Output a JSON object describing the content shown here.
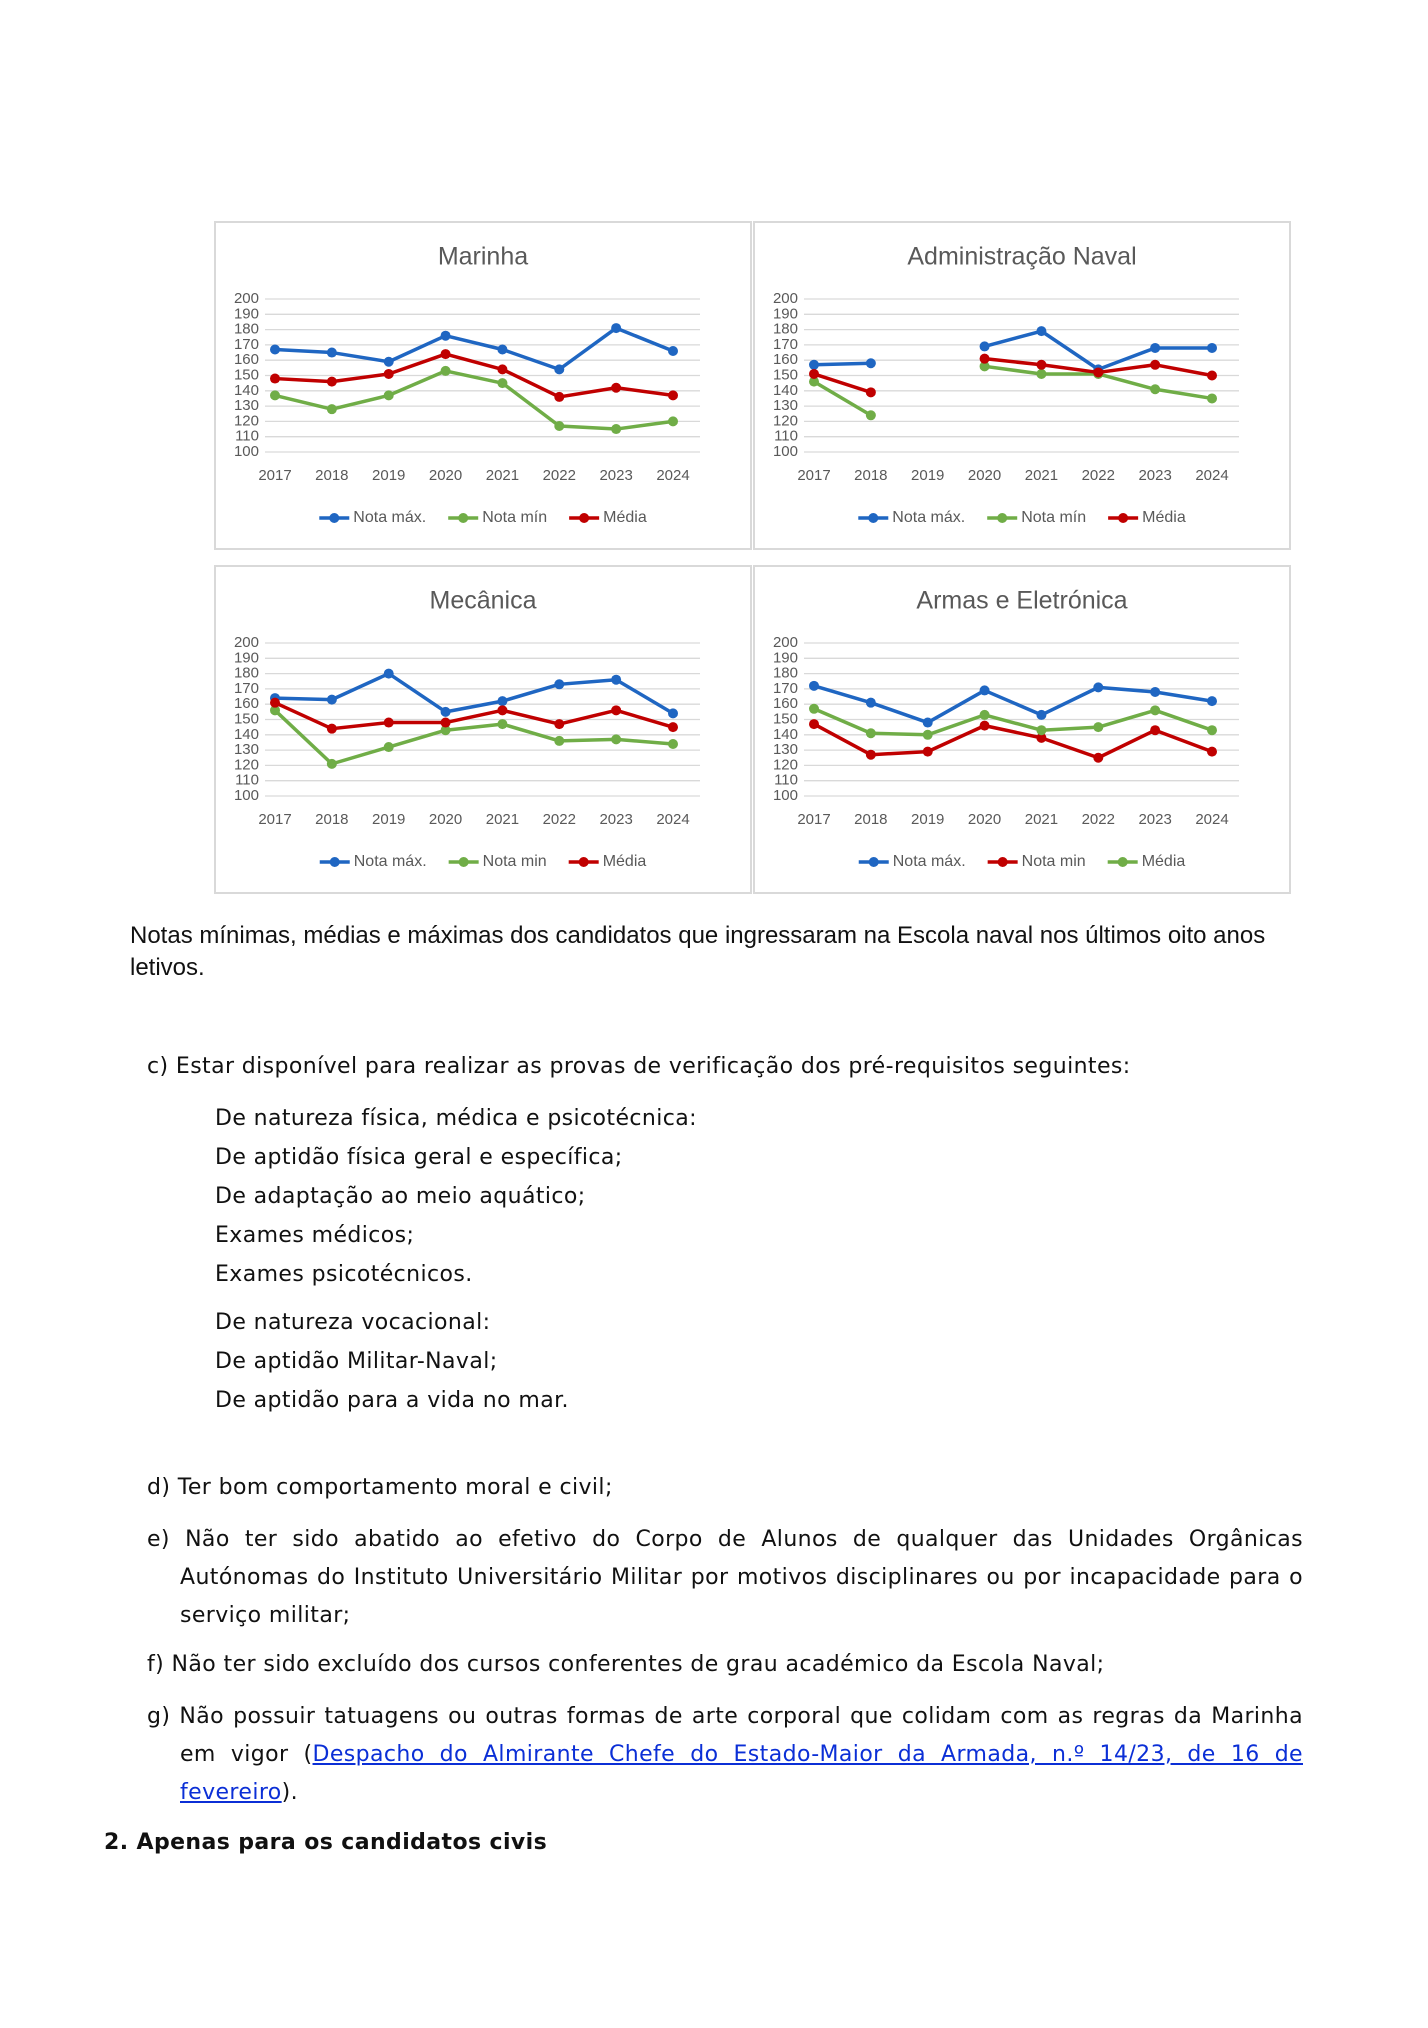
{
  "chart_data": [
    {
      "type": "line",
      "title": "Marinha",
      "categories": [
        "2017",
        "2018",
        "2019",
        "2020",
        "2021",
        "2022",
        "2023",
        "2024"
      ],
      "ylim": [
        100,
        200
      ],
      "yticks": [
        100,
        110,
        120,
        130,
        140,
        150,
        160,
        170,
        180,
        190,
        200
      ],
      "grid": true,
      "series": [
        {
          "name": "Nota máx.",
          "color": "#1f66c2",
          "values": [
            167,
            165,
            159,
            176,
            167,
            154,
            181,
            166
          ]
        },
        {
          "name": "Nota mín",
          "color": "#70ad47",
          "values": [
            137,
            128,
            137,
            153,
            145,
            117,
            115,
            120
          ]
        },
        {
          "name": "Média",
          "color": "#c00000",
          "values": [
            148,
            146,
            151,
            164,
            154,
            136,
            142,
            137
          ]
        }
      ]
    },
    {
      "type": "line",
      "title": "Administração Naval",
      "categories": [
        "2017",
        "2018",
        "2019",
        "2020",
        "2021",
        "2022",
        "2023",
        "2024"
      ],
      "ylim": [
        100,
        200
      ],
      "yticks": [
        100,
        110,
        120,
        130,
        140,
        150,
        160,
        170,
        180,
        190,
        200
      ],
      "grid": true,
      "series": [
        {
          "name": "Nota máx.",
          "color": "#1f66c2",
          "values": [
            157,
            158,
            null,
            169,
            179,
            154,
            168,
            168
          ]
        },
        {
          "name": "Nota mín",
          "color": "#70ad47",
          "values": [
            146,
            124,
            null,
            156,
            151,
            151,
            141,
            135
          ]
        },
        {
          "name": "Média",
          "color": "#c00000",
          "values": [
            151,
            139,
            null,
            161,
            157,
            152,
            157,
            150
          ]
        }
      ]
    },
    {
      "type": "line",
      "title": "Mecânica",
      "categories": [
        "2017",
        "2018",
        "2019",
        "2020",
        "2021",
        "2022",
        "2023",
        "2024"
      ],
      "ylim": [
        100,
        200
      ],
      "yticks": [
        100,
        110,
        120,
        130,
        140,
        150,
        160,
        170,
        180,
        190,
        200
      ],
      "grid": true,
      "series": [
        {
          "name": "Nota máx.",
          "color": "#1f66c2",
          "values": [
            164,
            163,
            180,
            155,
            162,
            173,
            176,
            154
          ]
        },
        {
          "name": "Nota min",
          "color": "#70ad47",
          "values": [
            156,
            121,
            132,
            143,
            147,
            136,
            137,
            134
          ]
        },
        {
          "name": "Média",
          "color": "#c00000",
          "values": [
            161,
            144,
            148,
            148,
            156,
            147,
            156,
            145
          ]
        }
      ]
    },
    {
      "type": "line",
      "title": "Armas e Eletrónica",
      "categories": [
        "2017",
        "2018",
        "2019",
        "2020",
        "2021",
        "2022",
        "2023",
        "2024"
      ],
      "ylim": [
        100,
        200
      ],
      "yticks": [
        100,
        110,
        120,
        130,
        140,
        150,
        160,
        170,
        180,
        190,
        200
      ],
      "grid": true,
      "series": [
        {
          "name": "Nota máx.",
          "color": "#1f66c2",
          "values": [
            172,
            161,
            148,
            169,
            153,
            171,
            168,
            162
          ]
        },
        {
          "name": "Nota min",
          "color": "#c00000",
          "values": [
            147,
            127,
            129,
            146,
            138,
            125,
            143,
            129
          ]
        },
        {
          "name": "Média",
          "color": "#70ad47",
          "values": [
            157,
            141,
            140,
            153,
            143,
            145,
            156,
            143
          ]
        }
      ]
    }
  ],
  "caption": "Notas mínimas, médias e máximas dos candidatos que ingressaram na Escola naval nos últimos oito anos letivos.",
  "item_c": {
    "label": "c)",
    "text": "Estar disponível para realizar as provas de verificação dos pré-requisitos seguintes:",
    "groups": [
      [
        "De natureza física, médica e psicotécnica:",
        "De aptidão física geral e específica;",
        "De adaptação ao meio aquático;",
        "Exames médicos;",
        "Exames psicotécnicos."
      ],
      [
        "De natureza vocacional:",
        "De aptidão Militar-Naval;",
        "De aptidão para a vida no mar."
      ]
    ]
  },
  "items": [
    {
      "label": "d)",
      "text": "Ter bom comportamento moral e civil;"
    },
    {
      "label": "e)",
      "text": "Não ter sido abatido ao efetivo do Corpo de Alunos de qualquer das Unidades Orgânicas Autónomas do Instituto Universitário Militar por motivos disciplinares ou por incapacidade para o serviço militar;"
    },
    {
      "label": "f)",
      "text": "Não ter sido excluído dos cursos conferentes de grau académico da Escola Naval;"
    },
    {
      "label": "g)",
      "text": "Não possuir tatuagens ou outras formas de arte corporal que colidam com as regras da Marinha em vigor (",
      "link": "Despacho do Almirante Chefe do Estado-Maior da Armada, n.º 14/23, de 16 de fevereiro",
      "end": ")."
    }
  ],
  "section": {
    "number": "2.",
    "title": "Apenas para os candidatos civis"
  }
}
